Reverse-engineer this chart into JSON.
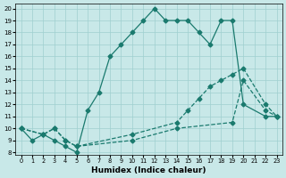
{
  "xlabel": "Humidex (Indice chaleur)",
  "bg_color": "#c8e8e8",
  "grid_color": "#9fcfcf",
  "line_color": "#1a7a6e",
  "xlim": [
    -0.5,
    23.5
  ],
  "ylim": [
    7.8,
    20.4
  ],
  "xticks": [
    0,
    1,
    2,
    3,
    4,
    5,
    6,
    7,
    8,
    9,
    10,
    11,
    12,
    13,
    14,
    15,
    16,
    17,
    18,
    19,
    20,
    21,
    22,
    23
  ],
  "yticks": [
    8,
    9,
    10,
    11,
    12,
    13,
    14,
    15,
    16,
    17,
    18,
    19,
    20
  ],
  "series": [
    {
      "x": [
        0,
        1,
        2,
        3,
        4,
        5,
        6,
        7,
        8,
        9,
        10,
        11,
        12,
        13,
        14,
        15,
        16,
        17,
        18,
        19,
        20,
        22,
        23
      ],
      "y": [
        10,
        9,
        9.5,
        9,
        8.5,
        8,
        11.5,
        13,
        16,
        17,
        18,
        19,
        20,
        19,
        19,
        19,
        18,
        17,
        19,
        19,
        12,
        11,
        11
      ],
      "ls": "-"
    },
    {
      "x": [
        0,
        2,
        3,
        4,
        5,
        10,
        14,
        15,
        16,
        17,
        18,
        19,
        20,
        22,
        23
      ],
      "y": [
        10,
        9.5,
        10,
        9,
        8.5,
        9.5,
        10.5,
        11.5,
        12.5,
        13.5,
        14,
        14.5,
        15,
        12,
        11
      ],
      "ls": "--"
    },
    {
      "x": [
        0,
        2,
        3,
        4,
        5,
        10,
        14,
        19,
        20,
        22,
        23
      ],
      "y": [
        10,
        9.5,
        10,
        9,
        8.5,
        9,
        10,
        10.5,
        14,
        11.5,
        11
      ],
      "ls": "--"
    }
  ]
}
